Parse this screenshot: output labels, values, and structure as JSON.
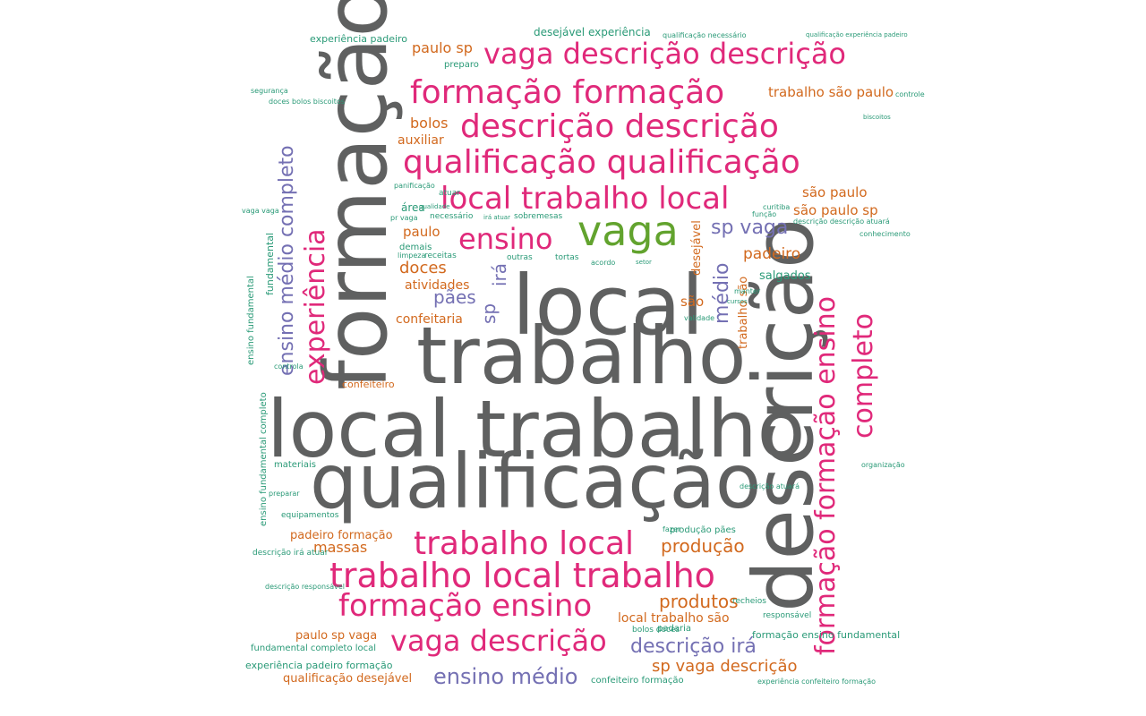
{
  "colors": {
    "gray": "#5f6060",
    "pink": "#e0297a",
    "green": "#62a32e",
    "purple": "#7470b3",
    "orange": "#d2691e",
    "teal": "#2a9a77"
  },
  "words": {
    "w_local_trabalho": "local trabalho",
    "w_qualificacao": "qualificação",
    "w_local": "local",
    "w_trabalho": "trabalho",
    "w_formacao": "formação",
    "w_descricao": "descrição",
    "w_vaga": "vaga",
    "w_vaga_desc_desc": "vaga descrição descrição",
    "w_formacao_formacao": "formação formação",
    "w_descricao_descricao": "descrição descrição",
    "w_qualif_qualif": "qualificação qualificação",
    "w_local_trab_local": "local trabalho local",
    "w_ensino": "ensino",
    "w_trabalho_local": "trabalho local",
    "w_trabalho_local_trabalho": "trabalho local trabalho",
    "w_formacao_ensino": "formação ensino",
    "w_vaga_descricao": "vaga descrição",
    "w_ensino_medio": "ensino médio",
    "w_descricao_ira": "descrição irá",
    "w_sp_vaga_descricao": "sp vaga descrição",
    "w_sp_vaga": "sp vaga",
    "w_formacao_formacao_ensino": "formação formação ensino",
    "w_completo": "completo",
    "w_experiencia": "experiência",
    "w_ensino_medio_completo": "ensino médio completo",
    "w_medio": "médio",
    "w_sp": "sp",
    "w_ira": "irá",
    "w_paes": "pães",
    "w_paulo_sp": "paulo sp",
    "w_trabalho_sao_paulo": "trabalho são paulo",
    "w_sao_paulo": "são paulo",
    "w_sao_paulo_sp": "são paulo sp",
    "w_padeiro": "padeiro",
    "w_salgados": "salgados",
    "w_doces": "doces",
    "w_atividades": "atividades",
    "w_confeitaria": "confeitaria",
    "w_paulo": "paulo",
    "w_bolos": "bolos",
    "w_auxiliar": "auxiliar",
    "w_producao": "produção",
    "w_produtos": "produtos",
    "w_massas": "massas",
    "w_padeiro_formacao": "padeiro formação",
    "w_paulo_sp_vaga": "paulo sp vaga",
    "w_local_trabalho_sao": "local trabalho são",
    "w_qualificacao_desejavel": "qualificação desejável",
    "w_confeiteiro": "confeiteiro",
    "w_desejavel_experiencia": "desejável experiência",
    "w_experiencia_padeiro": "experiência padeiro",
    "w_ensino_fundamental": "ensino fundamental",
    "w_fundamental_completo_local": "fundamental completo local",
    "w_experiencia_padeiro_formacao": "experiência padeiro formação",
    "w_confeiteiro_formacao": "confeiteiro formação",
    "w_formacao_ensino_fundamental": "formação ensino fundamental",
    "w_trabalho_sao": "trabalho são",
    "w_desejavel": "desejável",
    "w_sao": "são",
    "w_fundamental": "fundamental",
    "w_ensino_fundamental_completo": "ensino fundamental completo",
    "w_materiais": "materiais",
    "w_area": "área",
    "w_demais": "demais",
    "w_preparo": "preparo",
    "w_necessario": "necessário",
    "w_sobremesas": "sobremesas",
    "w_receitas": "receitas",
    "w_outras": "outras",
    "w_tortas": "tortas",
    "w_padaria": "padaria",
    "w_validade": "validade",
    "w_organizacao": "organização",
    "w_producao_paes": "produção pães",
    "w_recheios": "recheios",
    "w_responsavel": "responsável",
    "w_bolos_doces": "bolos doces",
    "w_atuar": "atuar",
    "w_panificacao": "panificação",
    "w_limpeza": "limpeza",
    "w_seguranca": "segurança",
    "w_controla": "controla",
    "w_qualidade": "qualidade",
    "w_curitiba": "curitiba",
    "w_manter": "manter",
    "w_acordo": "acordo",
    "w_fazer": "fazer",
    "w_descricao_ira_atuar": "descrição irá atuar",
    "w_descricao_responsavel": "descrição responsável",
    "w_qualificacao_necessario": "qualificação necessário",
    "w_qualificacao_experiencia_padeiro": "qualificação experiência padeiro",
    "w_experiencia_confeiteiro_formacao": "experiência confeiteiro formação",
    "w_doces_bolos_biscoitos": "doces bolos biscoitos",
    "w_conhecimento": "conhecimento",
    "w_preparar": "preparar",
    "w_equipamentos": "equipamentos",
    "w_funcao": "função",
    "w_descricao_atuara": "descrição atuará",
    "w_descricao_descricao_atuara": "descrição descrição atuará",
    "w_vaga_vaga": "vaga vaga",
    "w_pr_vaga": "pr vaga",
    "w_ira_atuar": "irá atuar",
    "w_setor": "setor",
    "w_controle": "controle",
    "w_cursos": "cursos",
    "w_biscoitos": "biscoitos",
    "w_producao_paes_2": "produção pães"
  }
}
